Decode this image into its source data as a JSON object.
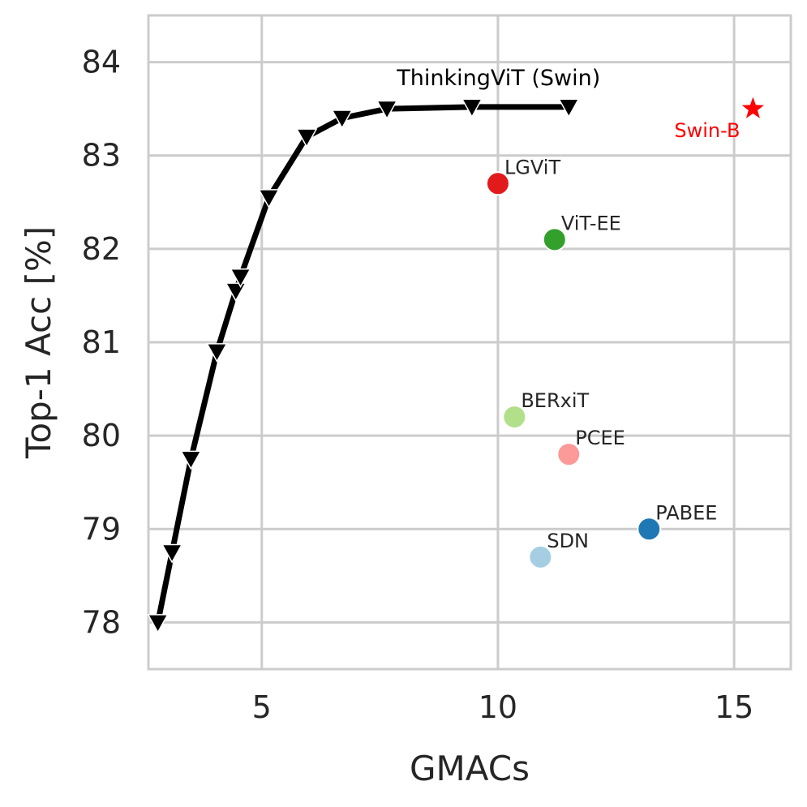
{
  "chart_data": {
    "type": "scatter",
    "xlabel": "GMACs",
    "ylabel": "Top-1 Acc [%]",
    "xlim": [
      2.6,
      16.2
    ],
    "ylim": [
      77.5,
      84.5
    ],
    "xticks": [
      5,
      10,
      15
    ],
    "yticks": [
      78,
      79,
      80,
      81,
      82,
      83,
      84
    ],
    "grid": true,
    "line_series": {
      "name": "ThinkingViT (Swin)",
      "color": "#000000",
      "marker": "triangle-down",
      "x": [
        2.8,
        3.1,
        3.5,
        4.05,
        4.45,
        4.55,
        5.15,
        5.95,
        6.7,
        7.65,
        9.45,
        11.5
      ],
      "y": [
        78.0,
        78.75,
        79.75,
        80.9,
        81.55,
        81.7,
        82.55,
        83.2,
        83.4,
        83.5,
        83.52,
        83.52
      ]
    },
    "points": [
      {
        "name": "LGViT",
        "x": 10.0,
        "y": 82.7,
        "color": "#e31a1c"
      },
      {
        "name": "ViT-EE",
        "x": 11.2,
        "y": 82.1,
        "color": "#33a02c"
      },
      {
        "name": "BERxiT",
        "x": 10.35,
        "y": 80.2,
        "color": "#b2df8a"
      },
      {
        "name": "PCEE",
        "x": 11.5,
        "y": 79.8,
        "color": "#fb9a99"
      },
      {
        "name": "PABEE",
        "x": 13.2,
        "y": 79.0,
        "color": "#1f78b4"
      },
      {
        "name": "SDN",
        "x": 10.9,
        "y": 78.7,
        "color": "#a6cee3"
      }
    ],
    "reference": {
      "name": "Swin-B",
      "x": 15.4,
      "y": 83.5,
      "color": "#ff0000",
      "marker": "star"
    }
  }
}
